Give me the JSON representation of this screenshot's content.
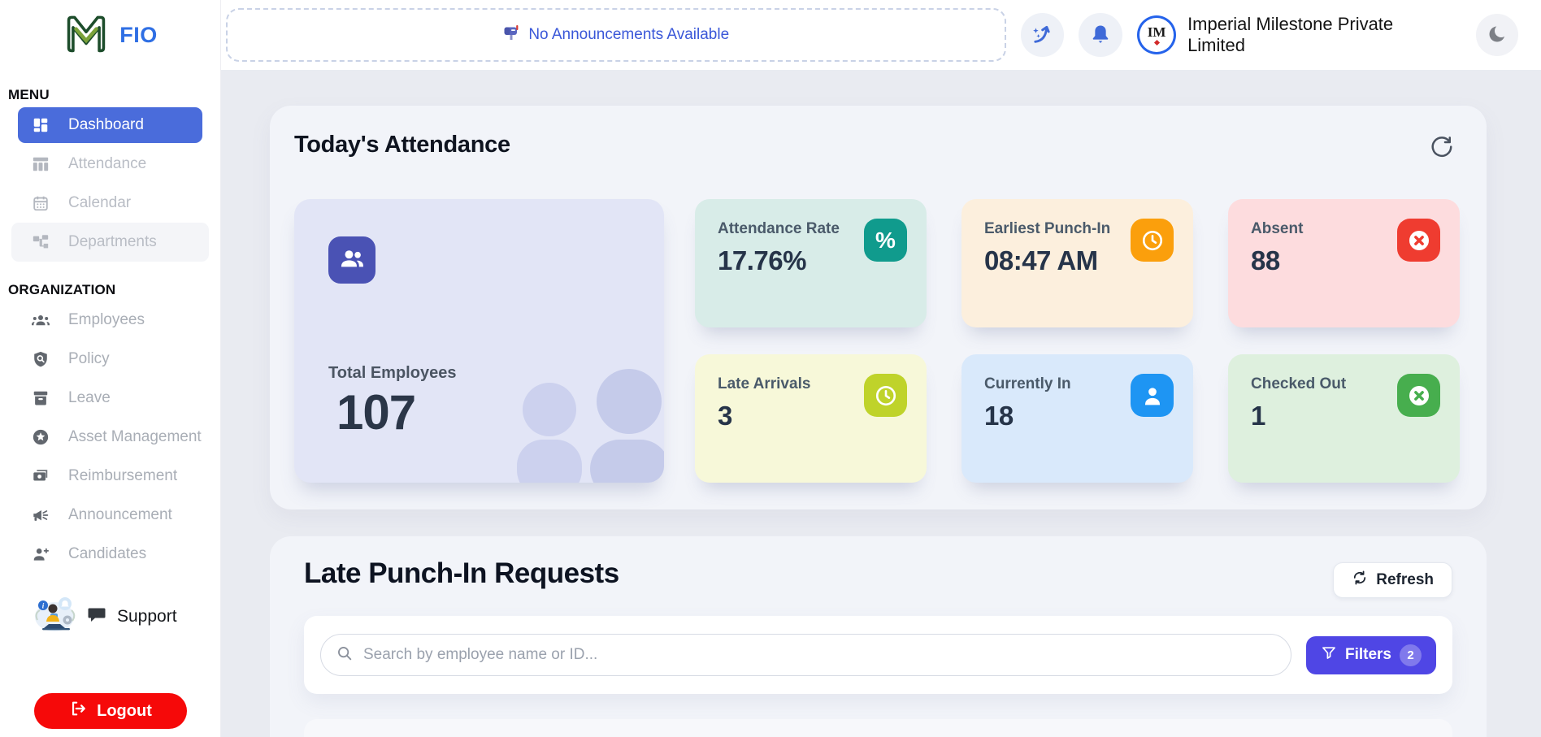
{
  "brand": {
    "name": "FIO"
  },
  "sidebar": {
    "menu_label": "MENU",
    "menu_items": [
      {
        "label": "Dashboard",
        "active": true
      },
      {
        "label": "Attendance"
      },
      {
        "label": "Calendar"
      },
      {
        "label": "Departments"
      }
    ],
    "org_label": "ORGANIZATION",
    "org_items": [
      {
        "label": "Employees"
      },
      {
        "label": "Policy"
      },
      {
        "label": "Leave"
      },
      {
        "label": "Asset Management"
      },
      {
        "label": "Reimbursement"
      },
      {
        "label": "Announcement"
      },
      {
        "label": "Candidates"
      }
    ],
    "support_label": "Support",
    "logout_label": "Logout"
  },
  "topbar": {
    "announcement_text": "No Announcements Available",
    "company_name": "Imperial Milestone Private Limited"
  },
  "attendance_section": {
    "title": "Today's Attendance",
    "total_card": {
      "label": "Total Employees",
      "value": "107",
      "card_bg": "#e2e5f6",
      "tile_bg": "#4a52b4"
    },
    "stat_cards": [
      {
        "label": "Attendance Rate",
        "value": "17.76%",
        "icon": "percent-icon",
        "card_bg": "#d8ece8",
        "badge_bg": "#109b8d"
      },
      {
        "label": "Earliest Punch-In",
        "value": "08:47 AM",
        "icon": "clock-icon",
        "card_bg": "#fcefdd",
        "badge_bg": "#fb9f0c"
      },
      {
        "label": "Absent",
        "value": "88",
        "icon": "cancel-icon",
        "card_bg": "#fddcde",
        "badge_bg": "#ef3c30"
      },
      {
        "label": "Late Arrivals",
        "value": "3",
        "icon": "clock-icon",
        "card_bg": "#f7f8d9",
        "badge_bg": "#bfd32a"
      },
      {
        "label": "Currently In",
        "value": "18",
        "icon": "person-icon",
        "card_bg": "#d9e9fb",
        "badge_bg": "#1e95f3"
      },
      {
        "label": "Checked Out",
        "value": "1",
        "icon": "cancel-icon",
        "card_bg": "#def0de",
        "badge_bg": "#47ae4e"
      }
    ]
  },
  "late_punchin_section": {
    "title": "Late Punch-In Requests",
    "refresh_label": "Refresh",
    "search_placeholder": "Search by employee name or ID...",
    "filters_label": "Filters",
    "filters_count": "2"
  },
  "colors": {
    "sidebar_active_blue": "#4a6cdb",
    "brand_blue": "#2f6fe4",
    "announcement_blue": "#3a57d8",
    "logout_red": "#f60909",
    "filters_indigo": "#4f46e5",
    "topbar_icon_blue": "#3f6ad8"
  }
}
